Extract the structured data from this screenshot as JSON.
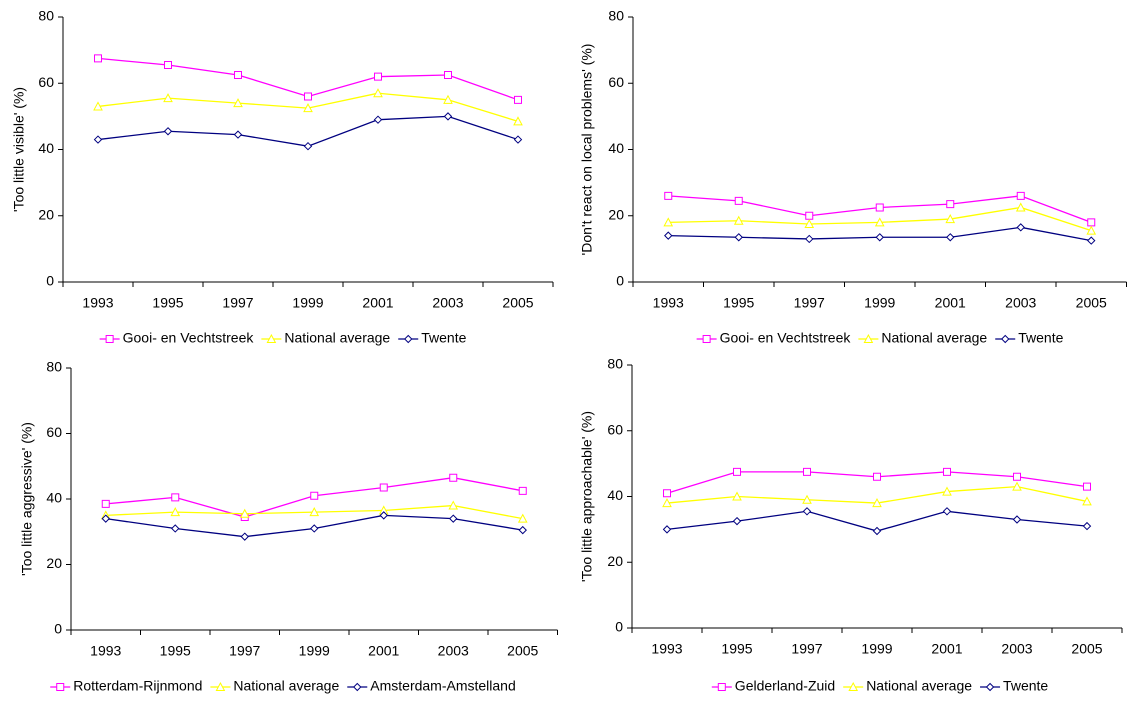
{
  "chart_data": [
    {
      "type": "line",
      "ylabel": "'Too little visible' (%)",
      "categories": [
        "1993",
        "1995",
        "1997",
        "1999",
        "2001",
        "2003",
        "2005"
      ],
      "series": [
        {
          "name": "Gooi- en Vechtstreek",
          "color": "#ff00ff",
          "marker": "square",
          "values": [
            67.5,
            65.5,
            62.5,
            56,
            62,
            62.5,
            55
          ]
        },
        {
          "name": "National average",
          "color": "#ffff00",
          "marker": "triangle",
          "values": [
            53,
            55.5,
            54,
            52.5,
            57,
            55,
            48.5
          ]
        },
        {
          "name": "Twente",
          "color": "#000080",
          "marker": "diamond",
          "values": [
            43,
            45.5,
            44.5,
            41,
            49,
            50,
            43
          ]
        }
      ],
      "ylim": [
        0,
        80
      ],
      "yticks": [
        0,
        20,
        40,
        60,
        80
      ],
      "legend": "bottom"
    },
    {
      "type": "line",
      "ylabel": "'Don't react on local problems' (%)",
      "categories": [
        "1993",
        "1995",
        "1997",
        "1999",
        "2001",
        "2003",
        "2005"
      ],
      "series": [
        {
          "name": "Gooi- en Vechtstreek",
          "color": "#ff00ff",
          "marker": "square",
          "values": [
            26,
            24.5,
            20,
            22.5,
            23.5,
            26,
            18
          ]
        },
        {
          "name": "National average",
          "color": "#ffff00",
          "marker": "triangle",
          "values": [
            18,
            18.5,
            17.5,
            18,
            19,
            22.5,
            15.5
          ]
        },
        {
          "name": "Twente",
          "color": "#000080",
          "marker": "diamond",
          "values": [
            14,
            13.5,
            13,
            13.5,
            13.5,
            16.5,
            12.5
          ]
        }
      ],
      "ylim": [
        0,
        80
      ],
      "yticks": [
        0,
        20,
        40,
        60,
        80
      ],
      "legend": "bottom"
    },
    {
      "type": "line",
      "ylabel": "'Too little aggressive' (%)",
      "categories": [
        "1993",
        "1995",
        "1997",
        "1999",
        "2001",
        "2003",
        "2005"
      ],
      "series": [
        {
          "name": "Rotterdam-Rijnmond",
          "color": "#ff00ff",
          "marker": "square",
          "values": [
            38.5,
            40.5,
            34.5,
            41,
            43.5,
            46.5,
            42.5
          ]
        },
        {
          "name": "National average",
          "color": "#ffff00",
          "marker": "triangle",
          "values": [
            35,
            36,
            35.5,
            36,
            36.5,
            38,
            34
          ]
        },
        {
          "name": "Amsterdam-Amstelland",
          "color": "#000080",
          "marker": "diamond",
          "values": [
            34,
            31,
            28.5,
            31,
            35,
            34,
            30.5
          ]
        }
      ],
      "ylim": [
        0,
        80
      ],
      "yticks": [
        0,
        20,
        40,
        60,
        80
      ],
      "legend": "bottom"
    },
    {
      "type": "line",
      "ylabel": "'Too little approachable' (%)",
      "categories": [
        "1993",
        "1995",
        "1997",
        "1999",
        "2001",
        "2003",
        "2005"
      ],
      "series": [
        {
          "name": "Gelderland-Zuid",
          "color": "#ff00ff",
          "marker": "square",
          "values": [
            41,
            47.5,
            47.5,
            46,
            47.5,
            46,
            43
          ]
        },
        {
          "name": "National average",
          "color": "#ffff00",
          "marker": "triangle",
          "values": [
            38,
            40,
            39,
            38,
            41.5,
            43,
            38.5
          ]
        },
        {
          "name": "Twente",
          "color": "#000080",
          "marker": "diamond",
          "values": [
            30,
            32.5,
            35.5,
            29.5,
            35.5,
            33,
            31
          ]
        }
      ],
      "ylim": [
        0,
        80
      ],
      "yticks": [
        0,
        20,
        40,
        60,
        80
      ],
      "legend": "bottom"
    }
  ]
}
